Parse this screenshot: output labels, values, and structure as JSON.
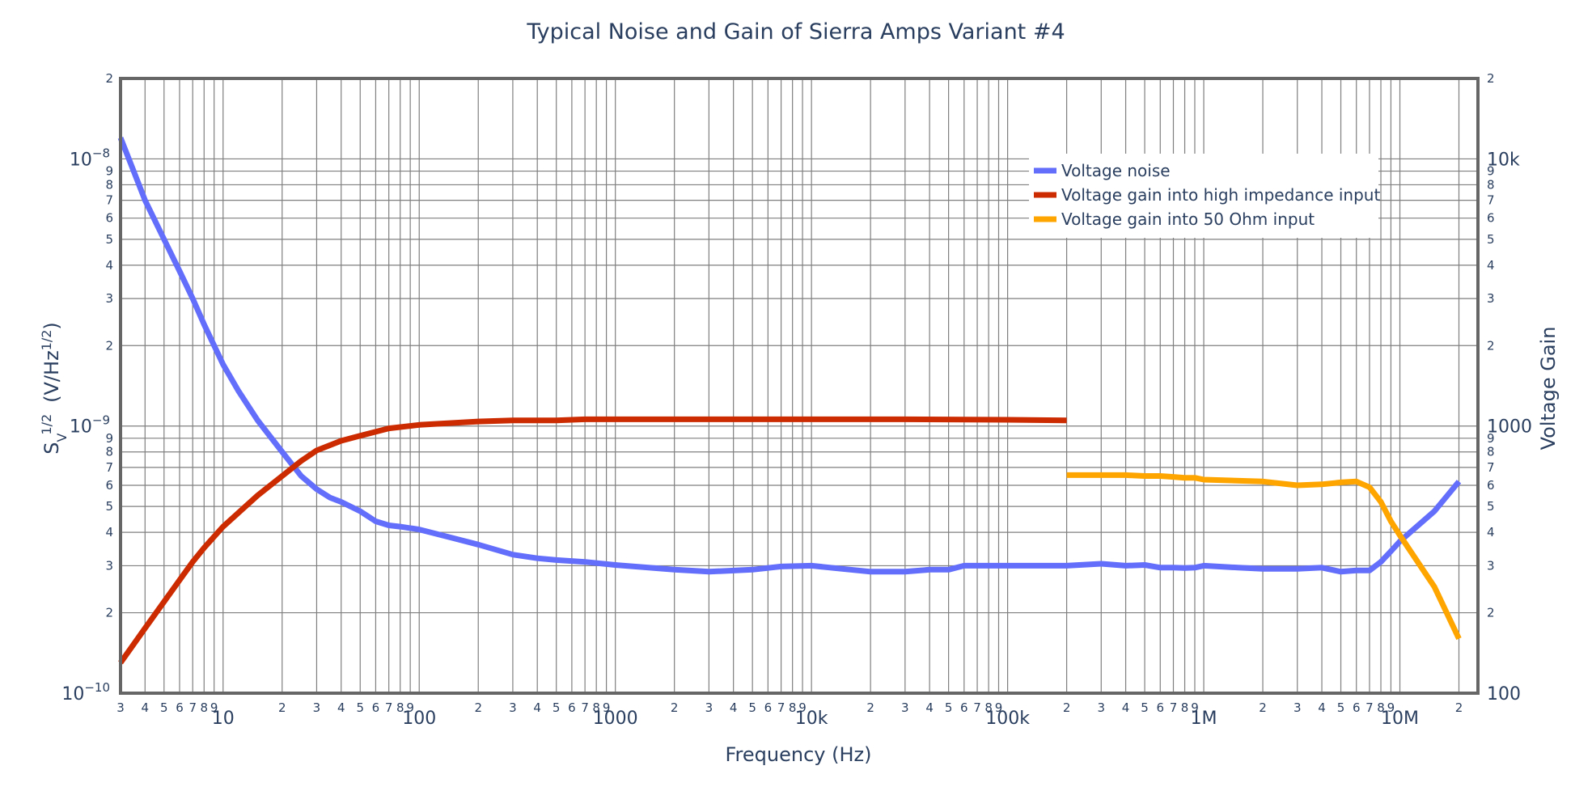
{
  "chart_data": {
    "type": "line",
    "title": "Typical Noise and Gain of Sierra Amps Variant #4",
    "xlabel": "Frequency (Hz)",
    "ylabel_left": "SV1/2 (V/Hz1/2)",
    "ylabel_left_parts": {
      "s": "S",
      "sub": "V",
      "sup": "1/2",
      "mid": "(V/Hz",
      "sup2": "1/2",
      "end": ")"
    },
    "ylabel_right": "Voltage Gain",
    "x_scale": "log",
    "y_scale": "log",
    "xlim": [
      3,
      25000000
    ],
    "ylim_left": [
      1e-10,
      2e-08
    ],
    "ylim_right": [
      100,
      20000
    ],
    "grid": true,
    "legend_position": "top-right",
    "x_major_ticks": [
      {
        "value": 10,
        "label": "10"
      },
      {
        "value": 100,
        "label": "100"
      },
      {
        "value": 1000,
        "label": "1000"
      },
      {
        "value": 10000,
        "label": "10k"
      },
      {
        "value": 100000,
        "label": "100k"
      },
      {
        "value": 1000000,
        "label": "1M"
      },
      {
        "value": 10000000,
        "label": "10M"
      }
    ],
    "y_left_major_ticks": [
      {
        "value": 1e-10,
        "base": "10",
        "exp": "−10"
      },
      {
        "value": 1e-09,
        "base": "10",
        "exp": "−9"
      },
      {
        "value": 1e-08,
        "base": "10",
        "exp": "−8"
      }
    ],
    "y_right_major_ticks": [
      {
        "value": 100,
        "label": "100"
      },
      {
        "value": 1000,
        "label": "1000"
      },
      {
        "value": 10000,
        "label": "10k"
      }
    ],
    "series": [
      {
        "name": "Voltage noise",
        "color": "#636efa",
        "axis": "left",
        "x": [
          3,
          3.5,
          4,
          5,
          6,
          7,
          8,
          9,
          10,
          12,
          15,
          20,
          25,
          30,
          35,
          40,
          50,
          60,
          70,
          80,
          100,
          150,
          200,
          300,
          400,
          500,
          700,
          1000,
          2000,
          3000,
          5000,
          7000,
          10000,
          20000,
          30000,
          40000,
          50000,
          60000,
          100000,
          200000,
          300000,
          400000,
          500000,
          600000,
          700000,
          800000,
          900000,
          1000000,
          1500000,
          2000000,
          3000000,
          4000000,
          5000000,
          6000000,
          7000000,
          8000000,
          9000000,
          10000000,
          15000000,
          20000000
        ],
        "y": [
          1.2e-08,
          9e-09,
          7e-09,
          5e-09,
          3.8e-09,
          3e-09,
          2.4e-09,
          2e-09,
          1.7e-09,
          1.35e-09,
          1.05e-09,
          8e-10,
          6.5e-10,
          5.8e-10,
          5.4e-10,
          5.2e-10,
          4.8e-10,
          4.4e-10,
          4.25e-10,
          4.2e-10,
          4.1e-10,
          3.8e-10,
          3.6e-10,
          3.3e-10,
          3.2e-10,
          3.15e-10,
          3.1e-10,
          3.02e-10,
          2.9e-10,
          2.85e-10,
          2.9e-10,
          2.98e-10,
          3e-10,
          2.85e-10,
          2.85e-10,
          2.9e-10,
          2.9e-10,
          3e-10,
          3e-10,
          3e-10,
          3.05e-10,
          3e-10,
          3.02e-10,
          2.95e-10,
          2.95e-10,
          2.94e-10,
          2.95e-10,
          3e-10,
          2.95e-10,
          2.92e-10,
          2.92e-10,
          2.95e-10,
          2.85e-10,
          2.88e-10,
          2.88e-10,
          3.1e-10,
          3.4e-10,
          3.7e-10,
          4.8e-10,
          6.2e-10
        ]
      },
      {
        "name": "Voltage gain into high impedance input",
        "color": "#cc2a00",
        "axis": "right",
        "x": [
          3,
          4,
          5,
          6,
          7,
          8,
          10,
          15,
          20,
          25,
          30,
          40,
          50,
          70,
          100,
          200,
          300,
          500,
          700,
          1000,
          3000,
          10000,
          30000,
          100000,
          200000
        ],
        "y": [
          130,
          175,
          220,
          265,
          310,
          350,
          420,
          550,
          650,
          740,
          810,
          880,
          920,
          980,
          1010,
          1040,
          1050,
          1050,
          1060,
          1060,
          1060,
          1060,
          1060,
          1055,
          1050
        ]
      },
      {
        "name": "Voltage gain into 50 Ohm input",
        "color": "#ffa500",
        "axis": "right",
        "x": [
          200000,
          300000,
          400000,
          500000,
          600000,
          700000,
          800000,
          900000,
          1000000,
          2000000,
          3000000,
          4000000,
          5000000,
          6000000,
          7000000,
          8000000,
          9000000,
          10000000,
          15000000,
          20000000
        ],
        "y": [
          655,
          655,
          655,
          650,
          650,
          645,
          640,
          640,
          630,
          620,
          600,
          605,
          615,
          620,
          590,
          520,
          440,
          390,
          250,
          160
        ]
      }
    ]
  }
}
